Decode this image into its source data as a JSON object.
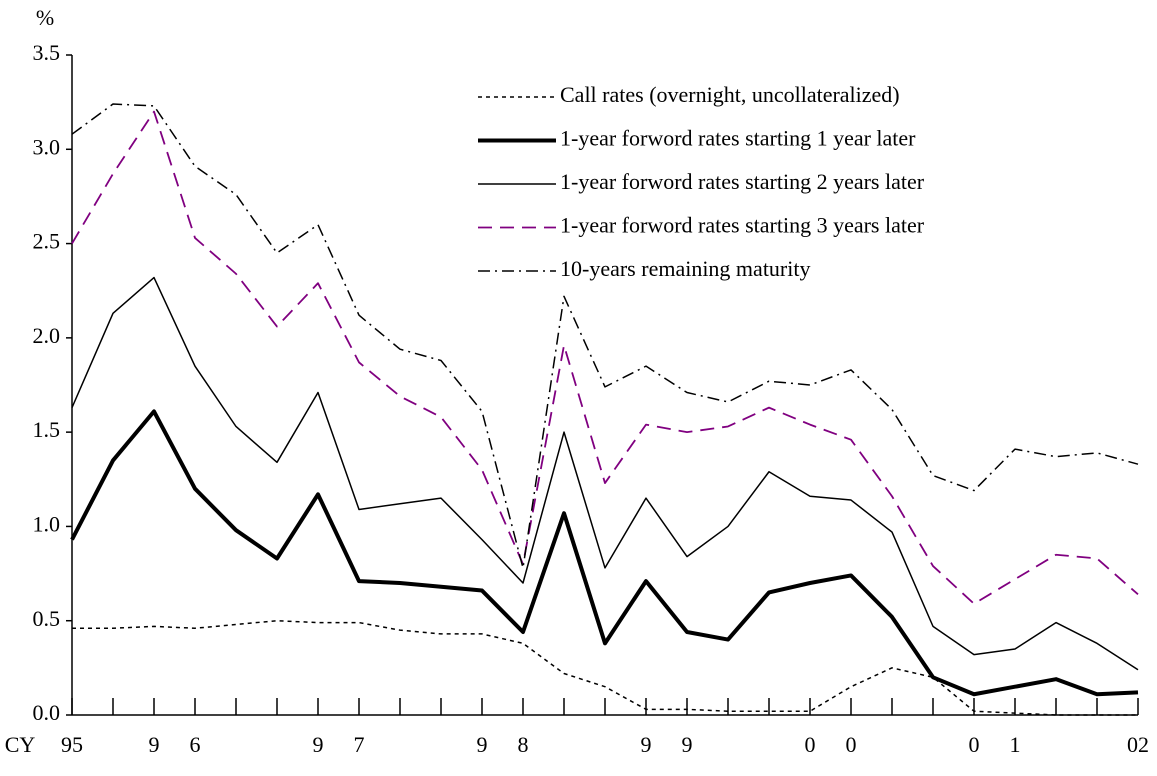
{
  "chart_data": {
    "type": "line",
    "y_label": "%",
    "x_label": "CY",
    "categories": [
      "95",
      null,
      "9",
      "6",
      null,
      null,
      "9",
      "7",
      null,
      null,
      "9",
      "8",
      null,
      null,
      "9",
      "9",
      null,
      null,
      "0",
      "0",
      null,
      null,
      "0",
      "1",
      null,
      null,
      "02"
    ],
    "ylim": [
      0,
      3.5
    ],
    "yticks": [
      {
        "value": 0,
        "label": "0.0"
      },
      {
        "value": 0.5,
        "label": "0.5"
      },
      {
        "value": 1,
        "label": "1.0"
      },
      {
        "value": 1.5,
        "label": "1.5"
      },
      {
        "value": 2,
        "label": "2.0"
      },
      {
        "value": 2.5,
        "label": "2.5"
      },
      {
        "value": 3,
        "label": "3.0"
      },
      {
        "value": 3.5,
        "label": "3.5"
      }
    ],
    "legend": "upper-right",
    "series": [
      {
        "name": "Call rates (overnight, uncollateralized)",
        "color": "#000000",
        "style": "dotted",
        "values": [
          0.46,
          0.46,
          0.47,
          0.46,
          0.48,
          0.5,
          0.49,
          0.49,
          0.45,
          0.43,
          0.43,
          0.38,
          0.22,
          0.15,
          0.03,
          0.03,
          0.02,
          0.02,
          0.02,
          0.15,
          0.25,
          0.2,
          0.02,
          0.01,
          0,
          0,
          0
        ]
      },
      {
        "name": "1-year forword rates starting 1 year later",
        "color": "#000000",
        "style": "thick",
        "values": [
          0.93,
          1.35,
          1.61,
          1.2,
          0.98,
          0.83,
          1.17,
          0.71,
          0.7,
          0.68,
          0.66,
          0.44,
          1.07,
          0.38,
          0.71,
          0.44,
          0.4,
          0.65,
          0.7,
          0.74,
          0.52,
          0.2,
          0.11,
          0.15,
          0.19,
          0.11,
          0.12
        ]
      },
      {
        "name": "1-year forword rates starting 2 years later",
        "color": "#000000",
        "style": "solid",
        "values": [
          1.63,
          2.13,
          2.32,
          1.85,
          1.53,
          1.34,
          1.71,
          1.09,
          1.12,
          1.15,
          0.93,
          0.7,
          1.5,
          0.78,
          1.15,
          0.84,
          1.0,
          1.29,
          1.16,
          1.14,
          0.97,
          0.47,
          0.32,
          0.35,
          0.49,
          0.38,
          0.24
        ]
      },
      {
        "name": "1-year forword rates starting 3 years later",
        "color": "#800080",
        "style": "dashed",
        "values": [
          2.5,
          2.87,
          3.2,
          2.53,
          2.34,
          2.06,
          2.29,
          1.87,
          1.69,
          1.58,
          1.3,
          0.8,
          1.96,
          1.23,
          1.54,
          1.5,
          1.53,
          1.63,
          1.54,
          1.46,
          1.16,
          0.79,
          0.59,
          0.72,
          0.85,
          0.83,
          0.64
        ]
      },
      {
        "name": "10-years remaining maturity",
        "color": "#000000",
        "style": "dashdot",
        "values": [
          3.08,
          3.24,
          3.23,
          2.91,
          2.76,
          2.45,
          2.6,
          2.12,
          1.94,
          1.88,
          1.61,
          0.78,
          2.22,
          1.74,
          1.85,
          1.71,
          1.66,
          1.77,
          1.75,
          1.83,
          1.62,
          1.27,
          1.19,
          1.41,
          1.37,
          1.39,
          1.33
        ]
      }
    ]
  }
}
